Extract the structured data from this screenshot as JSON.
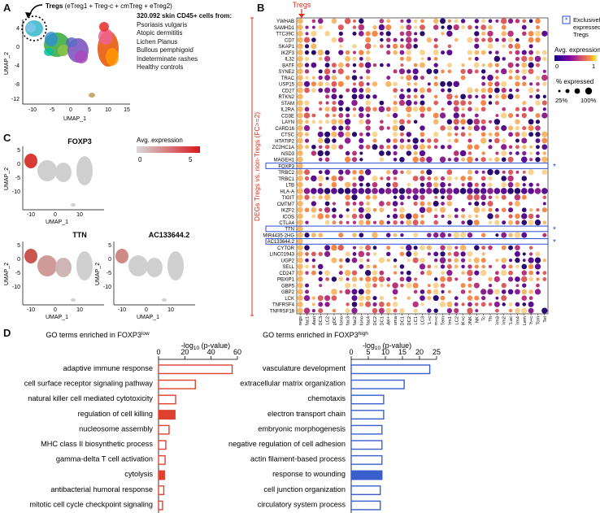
{
  "panels": {
    "a": "A",
    "b": "B",
    "c": "C",
    "d": "D"
  },
  "panel_a": {
    "tregs_label": "Tregs",
    "tregs_sub": " (eTreg1 + Treg-c + cmTreg + eTreg2)",
    "cells_title": "320.092 skin CD45+ cells from:",
    "sources": [
      "Psoriasis vulgaris",
      "Atopic dermititis",
      "Lichen Planus",
      "Bullous pemphigoid",
      "Indeterminate rashes",
      "Healthy controls"
    ],
    "xlabel": "UMAP_1",
    "ylabel": "UMAP_2",
    "xticks": [
      "-10",
      "-5",
      "0",
      "5",
      "10",
      "15"
    ],
    "yticks": [
      "4",
      "0",
      "-4",
      "-8",
      "-12"
    ]
  },
  "panel_c": {
    "genes": [
      "FOXP3",
      "TTN",
      "AC133644.2"
    ],
    "legend_title": "Avg. expression",
    "legend_min": "0",
    "legend_max": "5",
    "xlabel": "UMAP_1",
    "ylabel": "UMAP_2",
    "xticks": [
      "-10",
      "0",
      "10"
    ],
    "yticks": [
      "5",
      "0",
      "-5",
      "-10"
    ],
    "color_low": "#d3d3d3",
    "color_high": "#d7191c"
  },
  "panel_b": {
    "tregs_label": "Tregs",
    "side_label": "DEGs Tregs vs. non-Tregs (FC>=2)",
    "exclusive_note": "Exclusively expressed by Tregs",
    "star": "*",
    "avg_expr_title": "Avg. expression",
    "avg_min": "0",
    "avg_max": "1",
    "pct_title": "% expressed",
    "pct_25": "25%",
    "pct_100": "100%",
    "exclusive_color": "#2b4bd6",
    "arrow_color": "#d7301f"
  },
  "panel_d": {
    "left_title_pre": "GO terms enriched in FOXP3",
    "left_title_sup": "low",
    "right_title_pre": "GO terms enriched in FOXP3",
    "right_title_sup": "high",
    "axis_pre": "-log",
    "axis_sub": "10",
    "axis_post": " (p-value)",
    "low_color": "#e0412f",
    "high_color": "#3a5fcd"
  },
  "chart_data": [
    {
      "type": "heatmap",
      "title": "",
      "ylabel": "DEGs Tregs vs. non-Tregs (FC>=2)",
      "rows": [
        "YWHAB",
        "SAMHD1",
        "TTC39C",
        "CD7",
        "SKAP1",
        "IKZF3",
        "IL32",
        "BATF",
        "SYNE2",
        "TRAC",
        "USP15",
        "CD27",
        "RTKN2",
        "STAM",
        "IL2RA",
        "CD3E",
        "LAYN",
        "CARD16",
        "CTSC",
        "HTATIP2",
        "ZC2HC1A",
        "NSD3",
        "MAGEH1",
        "FOXP3",
        "TRBC2",
        "TRBC1",
        "LTB",
        "HLA-A",
        "TIGIT",
        "CMTM7",
        "IKZF2",
        "ICOS",
        "CTLA4",
        "TTN",
        "MIR4435-2HG",
        "AC133644.2",
        "CYTOR",
        "LINC01943",
        "UGP2",
        "SELL",
        "CD247",
        "PBXIP1",
        "GBP5",
        "GBP2",
        "LCK",
        "TNFRSF4",
        "TNFRSF18"
      ],
      "columns": [
        "Tregs",
        "Mac1",
        "Mast",
        "DC3",
        "LC2",
        "migDC",
        "InfMono",
        "Mac3",
        "Mac2",
        "Mono",
        "Mac4",
        "DC2",
        "DC1",
        "Mel+",
        "Plasma",
        "moDC1",
        "moDC2",
        "LC1",
        "LC3",
        "CTL+c",
        "Trm+c",
        "Tem",
        "Trm1",
        "ILC2",
        "ILC/NK+c",
        "ILC/NK",
        "NK",
        "Tc",
        "Th",
        "Trm3",
        "Trm2",
        "CTLac",
        "Trm4",
        "CTLem",
        "Th+c",
        "Tcm",
        "Tet"
      ],
      "exclusive_rows": [
        "FOXP3",
        "TTN",
        "AC133644.2"
      ],
      "legend_avg_expression": [
        0,
        1
      ],
      "legend_pct_expressed": [
        25,
        100
      ]
    },
    {
      "type": "bar",
      "title": "GO terms enriched in FOXP3low",
      "xlabel": "-log10 (p-value)",
      "xlim": [
        0,
        60
      ],
      "xticks": [
        0,
        20,
        40,
        60
      ],
      "categories": [
        "adaptive immune response",
        "cell surface receptor signaling pathway",
        "natural killer cell mediated cytotoxicity",
        "regulation of cell killing",
        "nucleosome assembly",
        "MHC class II biosynthetic process",
        "gamma-delta T cell activation",
        "cytolysis",
        "antibacterial humoral response",
        "mitotic cell cycle checkpoint signaling"
      ],
      "values": [
        56,
        28,
        13,
        12.5,
        8,
        5.5,
        5,
        4.5,
        4,
        3
      ],
      "filled": [
        false,
        false,
        false,
        true,
        false,
        false,
        false,
        true,
        false,
        false
      ]
    },
    {
      "type": "bar",
      "title": "GO terms enriched in FOXP3high",
      "xlabel": "-log10 (p-value)",
      "xlim": [
        0,
        25
      ],
      "xticks": [
        0,
        5,
        10,
        15,
        20,
        25
      ],
      "categories": [
        "vasculature development",
        "extracellular matrix organization",
        "chemotaxis",
        "electron transport chain",
        "embryonic morphogenesis",
        "negative regulation of cell adhesion",
        "actin filament-based process",
        "response to wounding",
        "cell junction organization",
        "circulatory system process"
      ],
      "values": [
        23,
        15.5,
        9.5,
        9.5,
        9,
        9,
        9,
        9,
        8.5,
        8.5
      ],
      "filled": [
        false,
        false,
        false,
        false,
        false,
        false,
        false,
        true,
        false,
        false
      ]
    }
  ]
}
